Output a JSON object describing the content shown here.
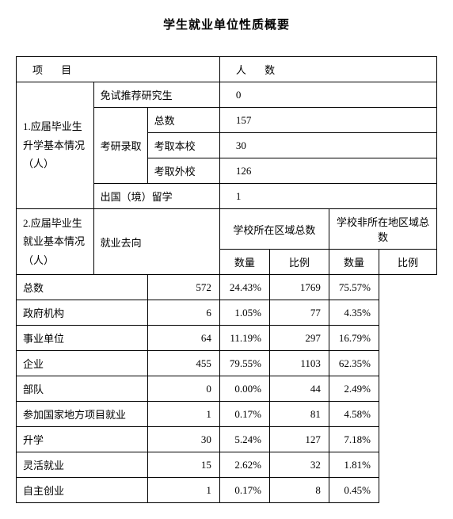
{
  "title": "学生就业单位性质概要",
  "header": {
    "col1": "项 目",
    "col2": "人 数"
  },
  "section1": {
    "group_label": "1.应届毕业生升学基本情况（人）",
    "rows": {
      "recommend": {
        "label": "免试推荐研究生",
        "value": "0"
      },
      "kaoyan_label": "考研录取",
      "total": {
        "label": "总数",
        "value": "157"
      },
      "benxiao": {
        "label": "考取本校",
        "value": "30"
      },
      "waixiao": {
        "label": "考取外校",
        "value": "126"
      },
      "abroad": {
        "label": "出国（境）留学",
        "value": "1"
      }
    }
  },
  "section2": {
    "group_label": "2.应届毕业生就业基本情况（人）",
    "dest_label": "就业去向",
    "sub_headers": {
      "in_region": "学校所在区域总数",
      "out_region": "学校非所在地区域总数",
      "count": "数量",
      "ratio": "比例"
    },
    "rows": [
      {
        "label": "总数",
        "in_count": "572",
        "in_ratio": "24.43%",
        "out_count": "1769",
        "out_ratio": "75.57%"
      },
      {
        "label": "政府机构",
        "in_count": "6",
        "in_ratio": "1.05%",
        "out_count": "77",
        "out_ratio": "4.35%"
      },
      {
        "label": "事业单位",
        "in_count": "64",
        "in_ratio": "11.19%",
        "out_count": "297",
        "out_ratio": "16.79%"
      },
      {
        "label": "企业",
        "in_count": "455",
        "in_ratio": "79.55%",
        "out_count": "1103",
        "out_ratio": "62.35%"
      },
      {
        "label": "部队",
        "in_count": "0",
        "in_ratio": "0.00%",
        "out_count": "44",
        "out_ratio": "2.49%"
      },
      {
        "label": "参加国家地方项目就业",
        "in_count": "1",
        "in_ratio": "0.17%",
        "out_count": "81",
        "out_ratio": "4.58%"
      },
      {
        "label": "升学",
        "in_count": "30",
        "in_ratio": "5.24%",
        "out_count": "127",
        "out_ratio": "7.18%"
      },
      {
        "label": "灵活就业",
        "in_count": "15",
        "in_ratio": "2.62%",
        "out_count": "32",
        "out_ratio": "1.81%"
      },
      {
        "label": "自主创业",
        "in_count": "1",
        "in_ratio": "0.17%",
        "out_count": "8",
        "out_ratio": "0.45%"
      }
    ]
  }
}
